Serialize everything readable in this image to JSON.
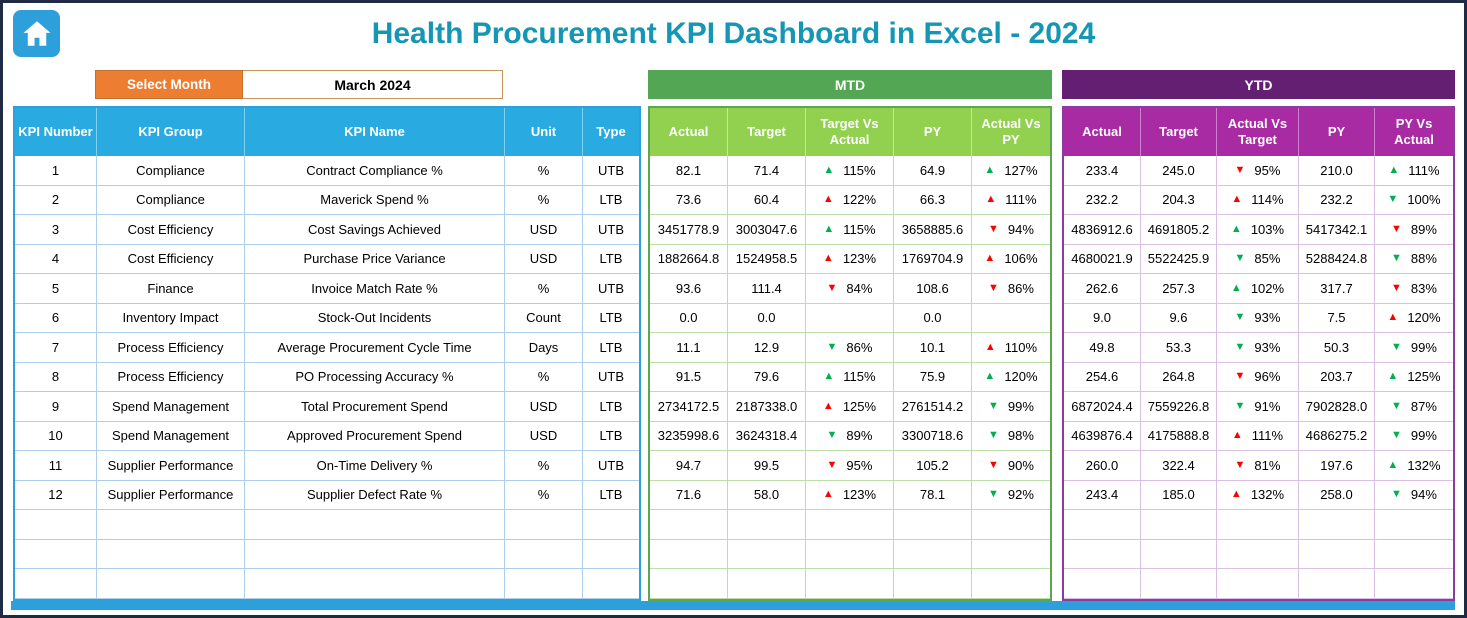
{
  "window": {
    "title": "Health Procurement KPI Dashboard in Excel - 2024"
  },
  "controls": {
    "select_month_label": "Select Month",
    "selected_month": "March 2024"
  },
  "colors": {
    "title_teal": "#1596B4",
    "accent_blue": "#29ABE2",
    "orange": "#ED7D31",
    "mtd_band_green": "#53A653",
    "mtd_header_green": "#92D050",
    "ytd_band_purple": "#651F72",
    "ytd_header_purple": "#A82BA4",
    "arrow_green": "#00B050",
    "arrow_red": "#FF0000"
  },
  "kpi_table": {
    "headers": [
      "KPI Number",
      "KPI Group",
      "KPI Name",
      "Unit",
      "Type"
    ],
    "empty_rows": 3,
    "rows": [
      {
        "number": "1",
        "group": "Compliance",
        "name": "Contract Compliance %",
        "unit": "%",
        "type": "UTB"
      },
      {
        "number": "2",
        "group": "Compliance",
        "name": "Maverick Spend %",
        "unit": "%",
        "type": "LTB"
      },
      {
        "number": "3",
        "group": "Cost Efficiency",
        "name": "Cost Savings Achieved",
        "unit": "USD",
        "type": "UTB"
      },
      {
        "number": "4",
        "group": "Cost Efficiency",
        "name": "Purchase Price Variance",
        "unit": "USD",
        "type": "LTB"
      },
      {
        "number": "5",
        "group": "Finance",
        "name": "Invoice Match Rate %",
        "unit": "%",
        "type": "UTB"
      },
      {
        "number": "6",
        "group": "Inventory Impact",
        "name": "Stock-Out Incidents",
        "unit": "Count",
        "type": "LTB"
      },
      {
        "number": "7",
        "group": "Process Efficiency",
        "name": "Average Procurement Cycle Time",
        "unit": "Days",
        "type": "LTB"
      },
      {
        "number": "8",
        "group": "Process Efficiency",
        "name": "PO Processing Accuracy %",
        "unit": "%",
        "type": "UTB"
      },
      {
        "number": "9",
        "group": "Spend Management",
        "name": "Total Procurement Spend",
        "unit": "USD",
        "type": "LTB"
      },
      {
        "number": "10",
        "group": "Spend Management",
        "name": "Approved Procurement Spend",
        "unit": "USD",
        "type": "LTB"
      },
      {
        "number": "11",
        "group": "Supplier Performance",
        "name": "On-Time Delivery %",
        "unit": "%",
        "type": "UTB"
      },
      {
        "number": "12",
        "group": "Supplier Performance",
        "name": "Supplier Defect Rate %",
        "unit": "%",
        "type": "LTB"
      }
    ]
  },
  "mtd_table": {
    "band_label": "MTD",
    "headers": [
      "Actual",
      "Target",
      "Target Vs Actual",
      "PY",
      "Actual Vs PY"
    ],
    "empty_rows": 3,
    "rows": [
      {
        "actual": "82.1",
        "target": "71.4",
        "target_vs_actual": {
          "dir": "up",
          "color": "green",
          "value": "115%"
        },
        "py": "64.9",
        "actual_vs_py": {
          "dir": "up",
          "color": "green",
          "value": "127%"
        }
      },
      {
        "actual": "73.6",
        "target": "60.4",
        "target_vs_actual": {
          "dir": "up",
          "color": "red",
          "value": "122%"
        },
        "py": "66.3",
        "actual_vs_py": {
          "dir": "up",
          "color": "red",
          "value": "111%"
        }
      },
      {
        "actual": "3451778.9",
        "target": "3003047.6",
        "target_vs_actual": {
          "dir": "up",
          "color": "green",
          "value": "115%"
        },
        "py": "3658885.6",
        "actual_vs_py": {
          "dir": "down",
          "color": "red",
          "value": "94%"
        }
      },
      {
        "actual": "1882664.8",
        "target": "1524958.5",
        "target_vs_actual": {
          "dir": "up",
          "color": "red",
          "value": "123%"
        },
        "py": "1769704.9",
        "actual_vs_py": {
          "dir": "up",
          "color": "red",
          "value": "106%"
        }
      },
      {
        "actual": "93.6",
        "target": "111.4",
        "target_vs_actual": {
          "dir": "down",
          "color": "red",
          "value": "84%"
        },
        "py": "108.6",
        "actual_vs_py": {
          "dir": "down",
          "color": "red",
          "value": "86%"
        }
      },
      {
        "actual": "0.0",
        "target": "0.0",
        "target_vs_actual": null,
        "py": "0.0",
        "actual_vs_py": null
      },
      {
        "actual": "11.1",
        "target": "12.9",
        "target_vs_actual": {
          "dir": "down",
          "color": "green",
          "value": "86%"
        },
        "py": "10.1",
        "actual_vs_py": {
          "dir": "up",
          "color": "red",
          "value": "110%"
        }
      },
      {
        "actual": "91.5",
        "target": "79.6",
        "target_vs_actual": {
          "dir": "up",
          "color": "green",
          "value": "115%"
        },
        "py": "75.9",
        "actual_vs_py": {
          "dir": "up",
          "color": "green",
          "value": "120%"
        }
      },
      {
        "actual": "2734172.5",
        "target": "2187338.0",
        "target_vs_actual": {
          "dir": "up",
          "color": "red",
          "value": "125%"
        },
        "py": "2761514.2",
        "actual_vs_py": {
          "dir": "down",
          "color": "green",
          "value": "99%"
        }
      },
      {
        "actual": "3235998.6",
        "target": "3624318.4",
        "target_vs_actual": {
          "dir": "down",
          "color": "green",
          "value": "89%"
        },
        "py": "3300718.6",
        "actual_vs_py": {
          "dir": "down",
          "color": "green",
          "value": "98%"
        }
      },
      {
        "actual": "94.7",
        "target": "99.5",
        "target_vs_actual": {
          "dir": "down",
          "color": "red",
          "value": "95%"
        },
        "py": "105.2",
        "actual_vs_py": {
          "dir": "down",
          "color": "red",
          "value": "90%"
        }
      },
      {
        "actual": "71.6",
        "target": "58.0",
        "target_vs_actual": {
          "dir": "up",
          "color": "red",
          "value": "123%"
        },
        "py": "78.1",
        "actual_vs_py": {
          "dir": "down",
          "color": "green",
          "value": "92%"
        }
      }
    ]
  },
  "ytd_table": {
    "band_label": "YTD",
    "headers": [
      "Actual",
      "Target",
      "Actual Vs Target",
      "PY",
      "PY Vs Actual"
    ],
    "empty_rows": 3,
    "rows": [
      {
        "actual": "233.4",
        "target": "245.0",
        "actual_vs_target": {
          "dir": "down",
          "color": "red",
          "value": "95%"
        },
        "py": "210.0",
        "py_vs_actual": {
          "dir": "up",
          "color": "green",
          "value": "111%"
        }
      },
      {
        "actual": "232.2",
        "target": "204.3",
        "actual_vs_target": {
          "dir": "up",
          "color": "red",
          "value": "114%"
        },
        "py": "232.2",
        "py_vs_actual": {
          "dir": "down",
          "color": "green",
          "value": "100%"
        }
      },
      {
        "actual": "4836912.6",
        "target": "4691805.2",
        "actual_vs_target": {
          "dir": "up",
          "color": "green",
          "value": "103%"
        },
        "py": "5417342.1",
        "py_vs_actual": {
          "dir": "down",
          "color": "red",
          "value": "89%"
        }
      },
      {
        "actual": "4680021.9",
        "target": "5522425.9",
        "actual_vs_target": {
          "dir": "down",
          "color": "green",
          "value": "85%"
        },
        "py": "5288424.8",
        "py_vs_actual": {
          "dir": "down",
          "color": "green",
          "value": "88%"
        }
      },
      {
        "actual": "262.6",
        "target": "257.3",
        "actual_vs_target": {
          "dir": "up",
          "color": "green",
          "value": "102%"
        },
        "py": "317.7",
        "py_vs_actual": {
          "dir": "down",
          "color": "red",
          "value": "83%"
        }
      },
      {
        "actual": "9.0",
        "target": "9.6",
        "actual_vs_target": {
          "dir": "down",
          "color": "green",
          "value": "93%"
        },
        "py": "7.5",
        "py_vs_actual": {
          "dir": "up",
          "color": "red",
          "value": "120%"
        }
      },
      {
        "actual": "49.8",
        "target": "53.3",
        "actual_vs_target": {
          "dir": "down",
          "color": "green",
          "value": "93%"
        },
        "py": "50.3",
        "py_vs_actual": {
          "dir": "down",
          "color": "green",
          "value": "99%"
        }
      },
      {
        "actual": "254.6",
        "target": "264.8",
        "actual_vs_target": {
          "dir": "down",
          "color": "red",
          "value": "96%"
        },
        "py": "203.7",
        "py_vs_actual": {
          "dir": "up",
          "color": "green",
          "value": "125%"
        }
      },
      {
        "actual": "6872024.4",
        "target": "7559226.8",
        "actual_vs_target": {
          "dir": "down",
          "color": "green",
          "value": "91%"
        },
        "py": "7902828.0",
        "py_vs_actual": {
          "dir": "down",
          "color": "green",
          "value": "87%"
        }
      },
      {
        "actual": "4639876.4",
        "target": "4175888.8",
        "actual_vs_target": {
          "dir": "up",
          "color": "red",
          "value": "111%"
        },
        "py": "4686275.2",
        "py_vs_actual": {
          "dir": "down",
          "color": "green",
          "value": "99%"
        }
      },
      {
        "actual": "260.0",
        "target": "322.4",
        "actual_vs_target": {
          "dir": "down",
          "color": "red",
          "value": "81%"
        },
        "py": "197.6",
        "py_vs_actual": {
          "dir": "up",
          "color": "green",
          "value": "132%"
        }
      },
      {
        "actual": "243.4",
        "target": "185.0",
        "actual_vs_target": {
          "dir": "up",
          "color": "red",
          "value": "132%"
        },
        "py": "258.0",
        "py_vs_actual": {
          "dir": "down",
          "color": "green",
          "value": "94%"
        }
      }
    ]
  }
}
